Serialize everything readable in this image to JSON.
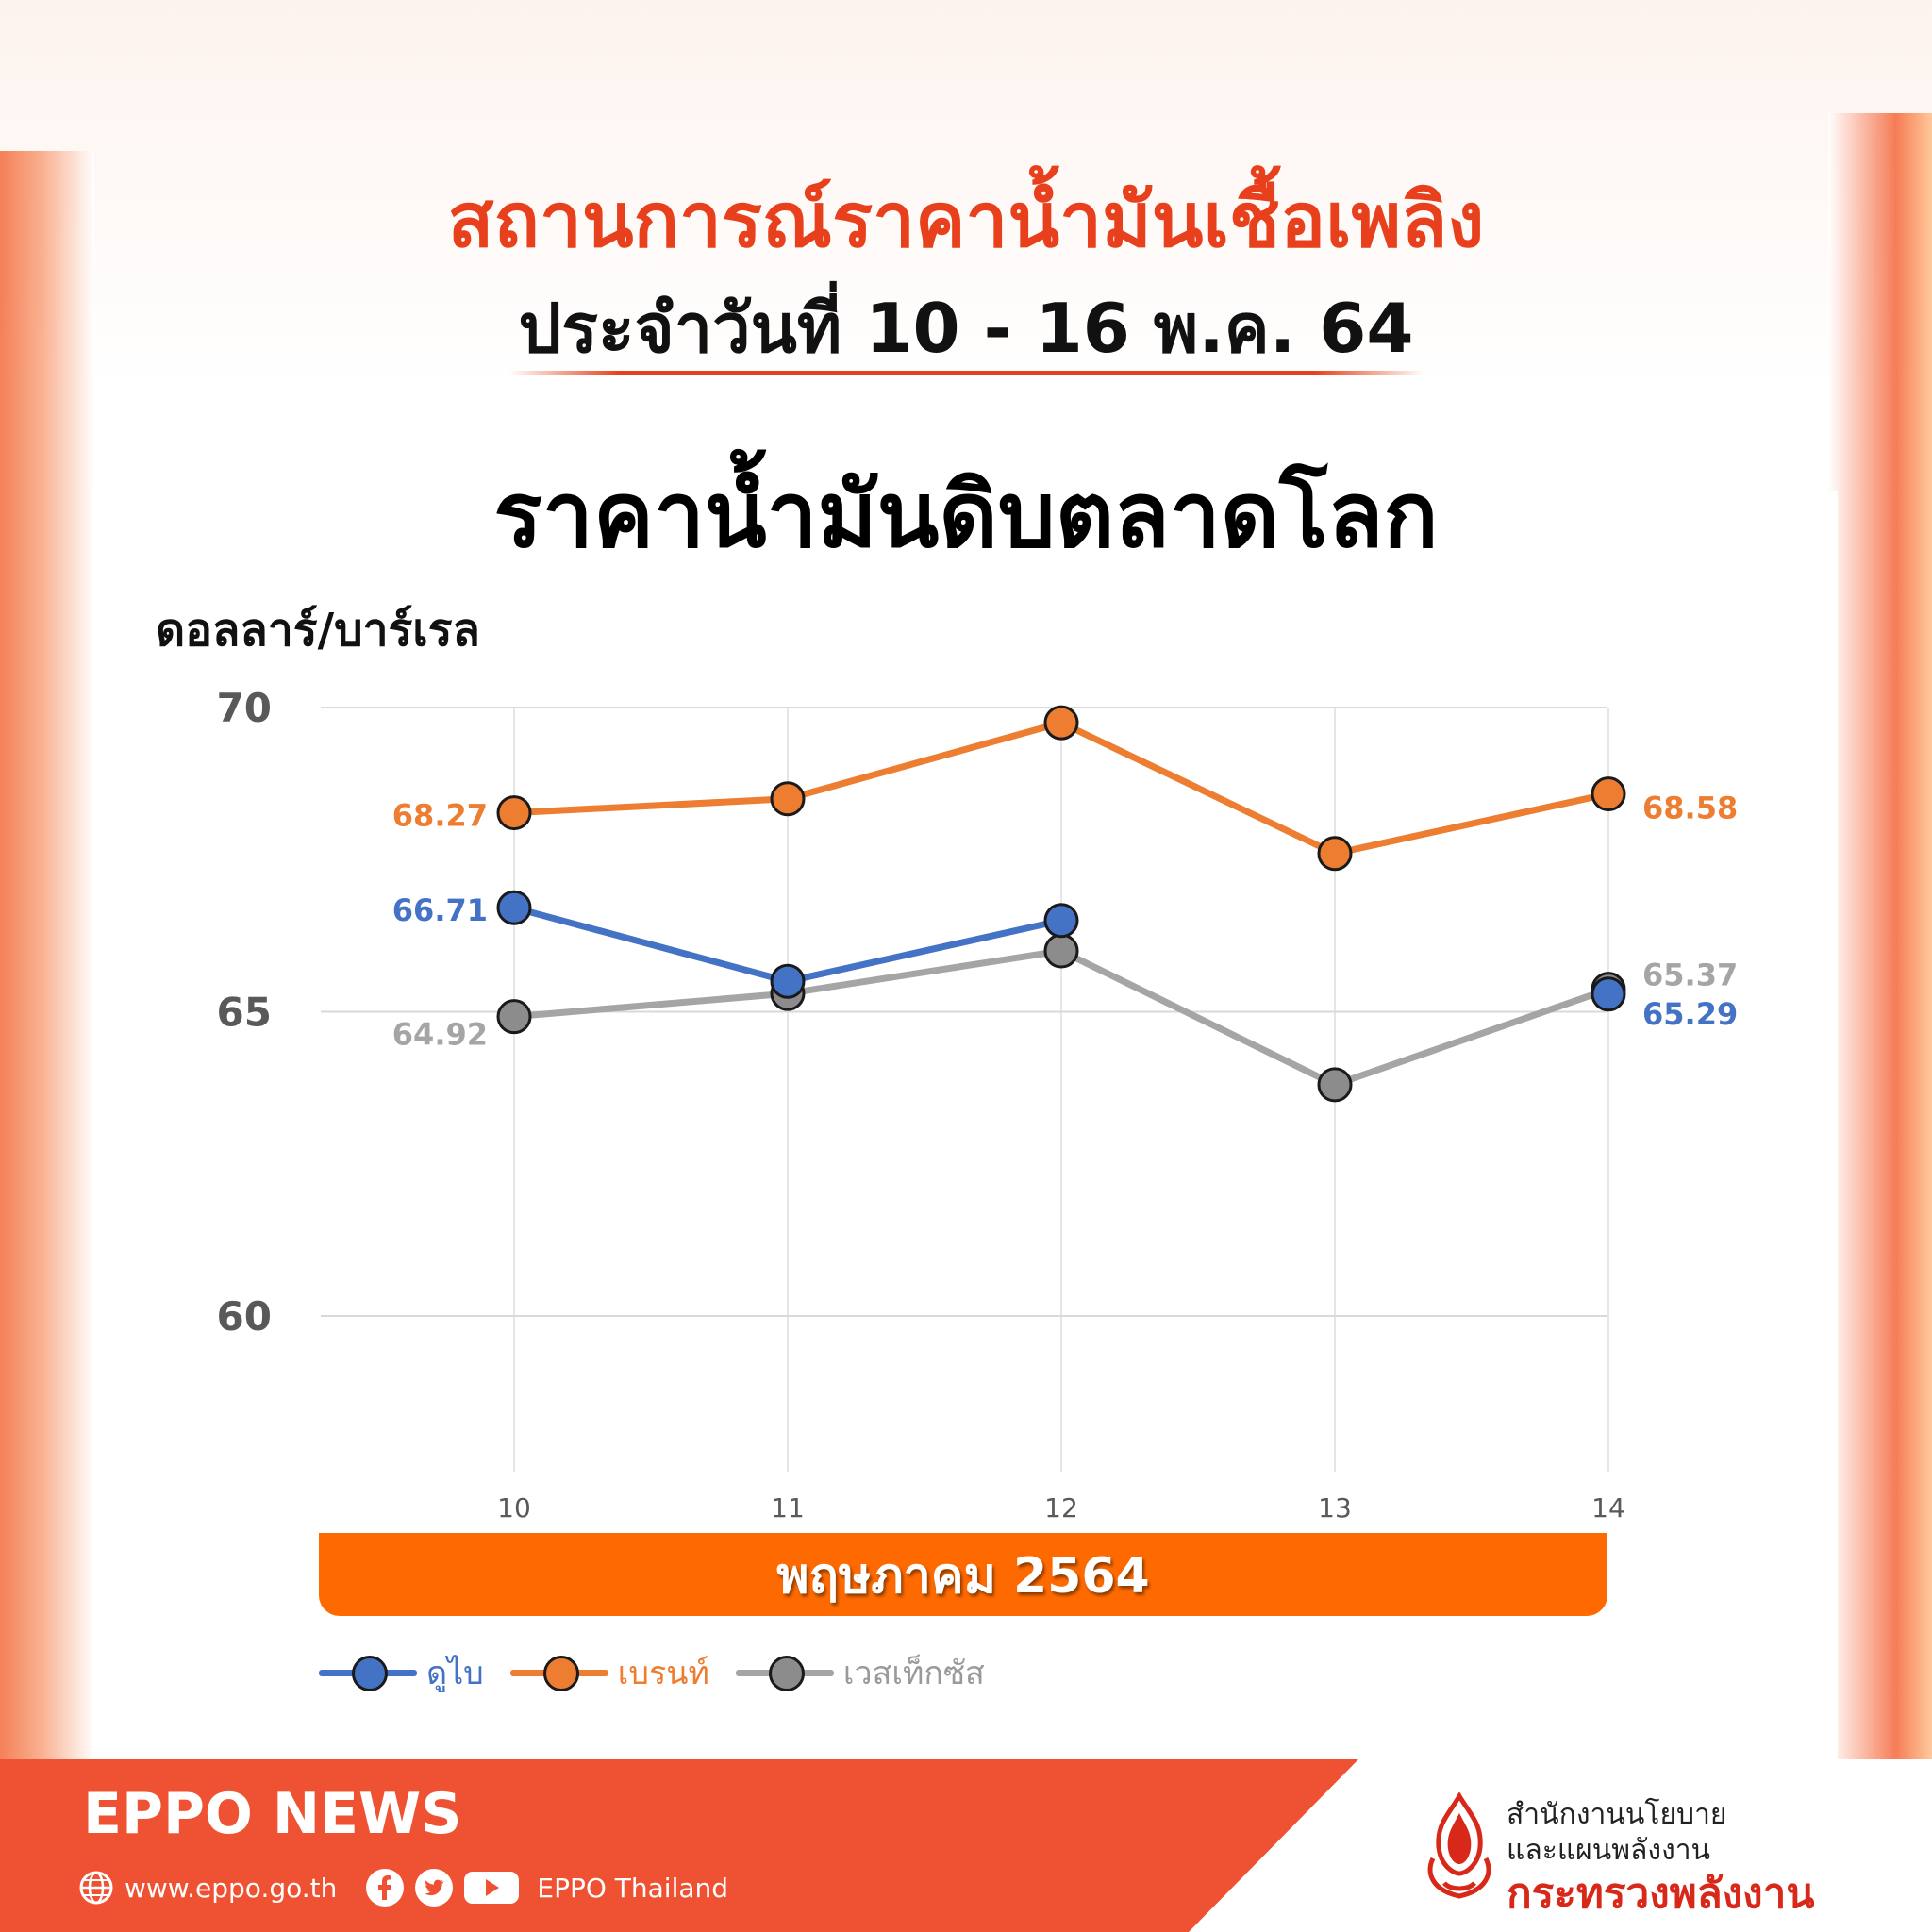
{
  "header": {
    "title_1": "สถานการณ์ราคาน้ำมันเชื้อเพลิง",
    "title_2": "ประจำวันที่ 10 - 16 พ.ค. 64",
    "title_3": "ราคาน้ำมันดิบตลาดโลก"
  },
  "chart_data": {
    "type": "line",
    "ylabel": "ดอลลาร์/บาร์เรล",
    "xlabel": "พฤษภาคม  2564",
    "categories": [
      "10",
      "11",
      "12",
      "13",
      "14"
    ],
    "y_ticks": [
      60,
      65,
      70
    ],
    "ylim": [
      58,
      70
    ],
    "grid": true,
    "legend_position": "bottom-left",
    "series": [
      {
        "name": "ดูไบ",
        "color": "#4472c4",
        "values": [
          66.71,
          65.5,
          66.5,
          null,
          65.29
        ],
        "labels": [
          "66.71",
          null,
          null,
          null,
          "65.29"
        ]
      },
      {
        "name": "เบรนท์",
        "color": "#ed7d31",
        "values": [
          68.27,
          68.5,
          69.75,
          67.6,
          68.58
        ],
        "labels": [
          "68.27",
          null,
          null,
          null,
          "68.58"
        ]
      },
      {
        "name": "เวสเท็กซัส",
        "color": "#a5a5a5",
        "values": [
          64.92,
          65.3,
          66.0,
          63.8,
          65.37
        ],
        "labels": [
          "64.92",
          null,
          null,
          null,
          "65.37"
        ]
      }
    ]
  },
  "footer": {
    "brand": "EPPO NEWS",
    "website": "www.eppo.go.th",
    "social_name": "EPPO Thailand",
    "org_line1": "สำนักงานนโยบาย",
    "org_line2": "และแผนพลังงาน",
    "org_line3": "กระทรวงพลังงาน",
    "icons": [
      "globe-icon",
      "facebook-icon",
      "twitter-icon",
      "youtube-icon"
    ]
  }
}
